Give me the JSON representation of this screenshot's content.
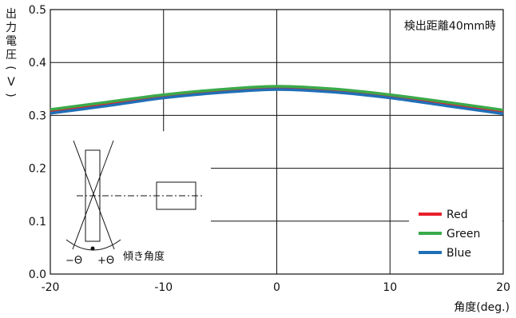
{
  "chart_data": {
    "type": "line",
    "xlabel": "角度(deg.)",
    "ylabel_chars": [
      "出",
      "力",
      "電",
      "圧",
      "(",
      "V",
      ")"
    ],
    "annotation": "検出距離40mm時",
    "inset_labels": {
      "angle": "傾き角度",
      "minus": "−Θ",
      "plus": "+Θ"
    },
    "xlim": [
      -20,
      20
    ],
    "ylim": [
      0.0,
      0.5
    ],
    "xticks": [
      "-20",
      "-10",
      "0",
      "10",
      "20"
    ],
    "yticks": [
      "0.0",
      "0.1",
      "0.2",
      "0.3",
      "0.4",
      "0.5"
    ],
    "x": [
      -20,
      -15,
      -10,
      -5,
      0,
      5,
      10,
      15,
      20
    ],
    "series": [
      {
        "name": "Red",
        "color": "#e8202a",
        "values": [
          0.308,
          0.321,
          0.335,
          0.345,
          0.351,
          0.346,
          0.336,
          0.322,
          0.306
        ]
      },
      {
        "name": "Green",
        "color": "#3aaa4a",
        "values": [
          0.311,
          0.325,
          0.339,
          0.349,
          0.355,
          0.35,
          0.339,
          0.325,
          0.31
        ]
      },
      {
        "name": "Blue",
        "color": "#1f6fb6",
        "values": [
          0.304,
          0.318,
          0.333,
          0.343,
          0.349,
          0.344,
          0.333,
          0.318,
          0.303
        ]
      }
    ],
    "grid": true,
    "legend_position": "bottom-right"
  }
}
